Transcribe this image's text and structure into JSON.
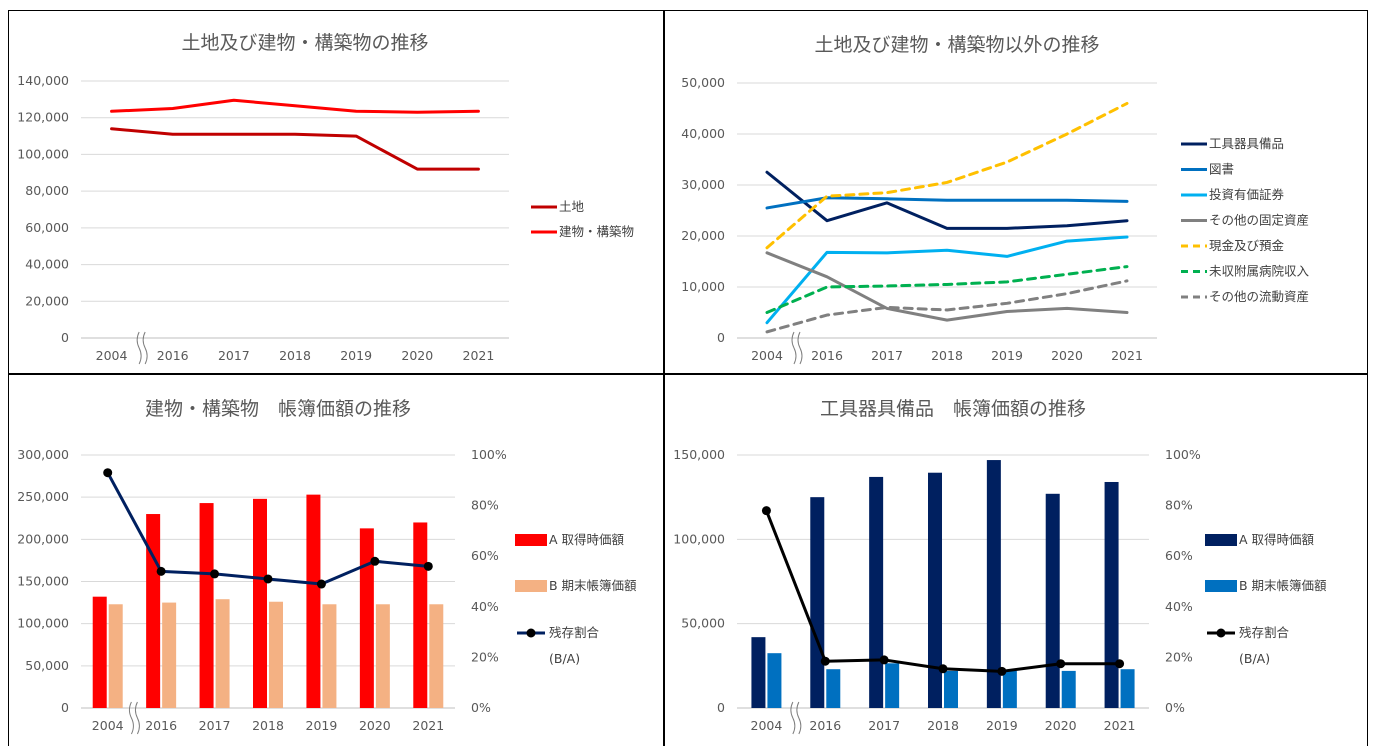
{
  "colors": {
    "grid": "#d9d9d9",
    "text": "#595959"
  },
  "chart_data": [
    {
      "type": "line",
      "title": "土地及び建物・構築物の推移",
      "categories": [
        "2004",
        "2016",
        "2017",
        "2018",
        "2019",
        "2020",
        "2021"
      ],
      "ylim": [
        0,
        140000
      ],
      "yticks": [
        "0",
        "20,000",
        "40,000",
        "60,000",
        "80,000",
        "100,000",
        "120,000",
        "140,000"
      ],
      "axis_break": "〃",
      "series": [
        {
          "name": "土地",
          "color": "#c00000",
          "dash": false,
          "values": [
            114000,
            111000,
            111000,
            111000,
            110000,
            92000,
            92000
          ]
        },
        {
          "name": "建物・構築物",
          "color": "#ff0000",
          "dash": false,
          "values": [
            123500,
            125000,
            129500,
            126500,
            123500,
            123000,
            123500
          ]
        }
      ]
    },
    {
      "type": "line",
      "title": "土地及び建物・構築物以外の推移",
      "categories": [
        "2004",
        "2016",
        "2017",
        "2018",
        "2019",
        "2020",
        "2021"
      ],
      "ylim": [
        0,
        50000
      ],
      "yticks": [
        "0",
        "10,000",
        "20,000",
        "30,000",
        "40,000",
        "50,000"
      ],
      "axis_break": "〃",
      "series": [
        {
          "name": "工具器具備品",
          "color": "#002060",
          "dash": false,
          "values": [
            32500,
            23000,
            26500,
            21500,
            21500,
            22000,
            23000
          ]
        },
        {
          "name": "図書",
          "color": "#0070c0",
          "dash": false,
          "values": [
            25500,
            27500,
            27300,
            27000,
            27000,
            27000,
            26800
          ]
        },
        {
          "name": "投資有価証券",
          "color": "#00b0f0",
          "dash": false,
          "values": [
            3000,
            16800,
            16700,
            17200,
            16000,
            19000,
            19800
          ]
        },
        {
          "name": "その他の固定資産",
          "color": "#808080",
          "dash": false,
          "values": [
            16700,
            12000,
            5800,
            3500,
            5200,
            5800,
            5000
          ]
        },
        {
          "name": "現金及び預金",
          "color": "#ffc000",
          "dash": true,
          "values": [
            17700,
            27800,
            28500,
            30500,
            34500,
            40000,
            46000
          ]
        },
        {
          "name": "未収附属病院収入",
          "color": "#00b050",
          "dash": true,
          "values": [
            5000,
            10000,
            10200,
            10500,
            11000,
            12500,
            14000
          ]
        },
        {
          "name": "その他の流動資産",
          "color": "#808080",
          "dash": true,
          "values": [
            1200,
            4500,
            6000,
            5500,
            6800,
            8700,
            11200
          ]
        }
      ]
    },
    {
      "type": "bar",
      "title": "建物・構築物　帳簿価額の推移",
      "categories": [
        "2004",
        "2016",
        "2017",
        "2018",
        "2019",
        "2020",
        "2021"
      ],
      "ylim": [
        0,
        300000
      ],
      "yticks": [
        "0",
        "50,000",
        "100,000",
        "150,000",
        "200,000",
        "250,000",
        "300,000"
      ],
      "y2lim": [
        0,
        1
      ],
      "y2ticks": [
        "0%",
        "20%",
        "40%",
        "60%",
        "80%",
        "100%"
      ],
      "axis_break": "〃",
      "series": [
        {
          "name": "A 取得時価額",
          "color": "#ff0000",
          "values": [
            132000,
            230000,
            243000,
            248000,
            253000,
            213000,
            220000
          ]
        },
        {
          "name": "B 期末帳簿価額",
          "color": "#f4b183",
          "values": [
            123000,
            125000,
            129000,
            126000,
            123000,
            123000,
            123000
          ]
        }
      ],
      "ratio": {
        "name": "残存割合",
        "sub": "(B/A)",
        "color": "#002060",
        "values": [
          0.93,
          0.54,
          0.53,
          0.51,
          0.49,
          0.58,
          0.56
        ]
      }
    },
    {
      "type": "bar",
      "title": "工具器具備品　帳簿価額の推移",
      "categories": [
        "2004",
        "2016",
        "2017",
        "2018",
        "2019",
        "2020",
        "2021"
      ],
      "ylim": [
        0,
        150000
      ],
      "yticks": [
        "0",
        "50,000",
        "100,000",
        "150,000"
      ],
      "y2lim": [
        0,
        1
      ],
      "y2ticks": [
        "0%",
        "20%",
        "40%",
        "60%",
        "80%",
        "100%"
      ],
      "axis_break": "〃",
      "series": [
        {
          "name": "A 取得時価額",
          "color": "#002060",
          "values": [
            42000,
            125000,
            137000,
            139500,
            147000,
            127000,
            134000
          ]
        },
        {
          "name": "B 期末帳簿価額",
          "color": "#0070c0",
          "values": [
            32500,
            23000,
            26500,
            22000,
            22000,
            22000,
            23000
          ]
        }
      ],
      "ratio": {
        "name": "残存割合",
        "sub": "(B/A)",
        "color": "#000000",
        "values": [
          0.78,
          0.185,
          0.19,
          0.155,
          0.145,
          0.175,
          0.175
        ]
      }
    }
  ]
}
